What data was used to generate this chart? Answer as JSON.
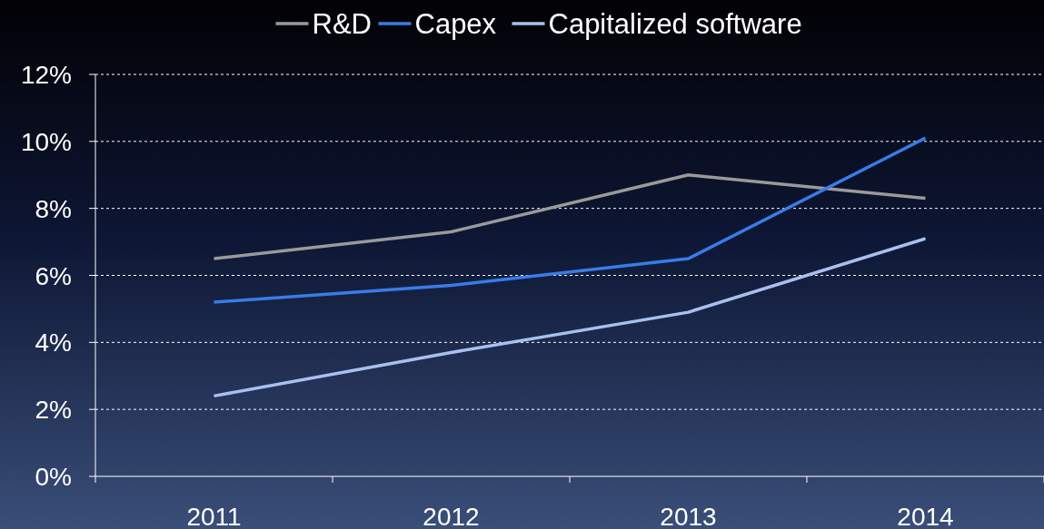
{
  "chart_data": {
    "type": "line",
    "categories": [
      "2011",
      "2012",
      "2013",
      "2014"
    ],
    "series": [
      {
        "name": "R&D",
        "color": "#9a9a9a",
        "values": [
          6.5,
          7.3,
          9.0,
          8.3
        ]
      },
      {
        "name": "Capex",
        "color": "#3a7be8",
        "values": [
          5.2,
          5.7,
          6.5,
          10.1
        ]
      },
      {
        "name": "Capitalized software",
        "color": "#a8c0f0",
        "values": [
          2.4,
          3.7,
          4.9,
          7.1
        ]
      }
    ],
    "ylim": [
      0,
      12
    ],
    "yticks": [
      {
        "value": 0,
        "label": "0%"
      },
      {
        "value": 2,
        "label": "2%"
      },
      {
        "value": 4,
        "label": "4%"
      },
      {
        "value": 6,
        "label": "6%"
      },
      {
        "value": 8,
        "label": "8%"
      },
      {
        "value": 10,
        "label": "10%"
      },
      {
        "value": 12,
        "label": "12%"
      }
    ],
    "grid": "y",
    "legend": "top",
    "marker": "none",
    "line_style": "solid"
  }
}
